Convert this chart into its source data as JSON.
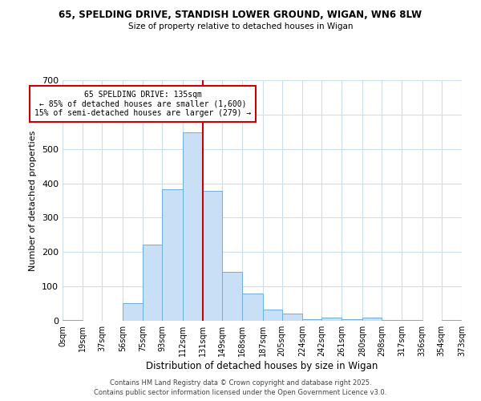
{
  "title": "65, SPELDING DRIVE, STANDISH LOWER GROUND, WIGAN, WN6 8LW",
  "subtitle": "Size of property relative to detached houses in Wigan",
  "xlabel": "Distribution of detached houses by size in Wigan",
  "ylabel": "Number of detached properties",
  "bar_color": "#c8dff5",
  "bar_edge_color": "#6ab0e0",
  "bin_edges": [
    0,
    19,
    37,
    56,
    75,
    93,
    112,
    131,
    149,
    168,
    187,
    205,
    224,
    242,
    261,
    280,
    298,
    317,
    336,
    354,
    373
  ],
  "bin_labels": [
    "0sqm",
    "19sqm",
    "37sqm",
    "56sqm",
    "75sqm",
    "93sqm",
    "112sqm",
    "131sqm",
    "149sqm",
    "168sqm",
    "187sqm",
    "205sqm",
    "224sqm",
    "242sqm",
    "261sqm",
    "280sqm",
    "298sqm",
    "317sqm",
    "336sqm",
    "354sqm",
    "373sqm"
  ],
  "counts": [
    2,
    0,
    0,
    52,
    222,
    383,
    549,
    378,
    143,
    80,
    32,
    20,
    4,
    9,
    4,
    10,
    2,
    2,
    0,
    2
  ],
  "vline_x": 131,
  "vline_color": "#cc0000",
  "ylim": [
    0,
    700
  ],
  "yticks": [
    0,
    100,
    200,
    300,
    400,
    500,
    600,
    700
  ],
  "annotation_title": "65 SPELDING DRIVE: 135sqm",
  "annotation_line1": "← 85% of detached houses are smaller (1,600)",
  "annotation_line2": "15% of semi-detached houses are larger (279) →",
  "annotation_box_color": "#ffffff",
  "annotation_box_edge": "#cc0000",
  "footer1": "Contains HM Land Registry data © Crown copyright and database right 2025.",
  "footer2": "Contains public sector information licensed under the Open Government Licence v3.0.",
  "background_color": "#ffffff",
  "grid_color": "#ccddee"
}
